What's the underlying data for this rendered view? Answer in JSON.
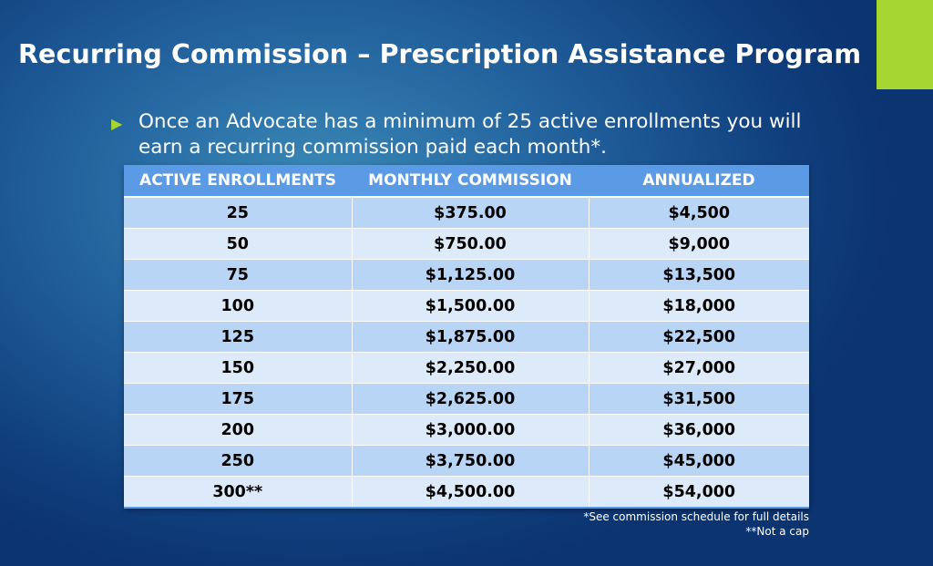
{
  "slide": {
    "title": "Recurring Commission – Prescription Assistance Program",
    "accent_color": "#a5d631"
  },
  "bullet": {
    "icon": "triangle-bullet-icon",
    "text": "Once an Advocate has a minimum of 25 active enrollments you will earn a recurring commission paid each month*."
  },
  "table": {
    "headers": [
      "ACTIVE ENROLLMENTS",
      "MONTHLY COMMISSION",
      "ANNUALIZED"
    ],
    "rows": [
      [
        "25",
        "$375.00",
        "$4,500"
      ],
      [
        "50",
        "$750.00",
        "$9,000"
      ],
      [
        "75",
        "$1,125.00",
        "$13,500"
      ],
      [
        "100",
        "$1,500.00",
        "$18,000"
      ],
      [
        "125",
        "$1,875.00",
        "$22,500"
      ],
      [
        "150",
        "$2,250.00",
        "$27,000"
      ],
      [
        "175",
        "$2,625.00",
        "$31,500"
      ],
      [
        "200",
        "$3,000.00",
        "$36,000"
      ],
      [
        "250",
        "$3,750.00",
        "$45,000"
      ],
      [
        "300**",
        "$4,500.00",
        "$54,000"
      ]
    ]
  },
  "footnotes": {
    "note1": "*See commission schedule for full details",
    "note2": "**Not a cap"
  }
}
